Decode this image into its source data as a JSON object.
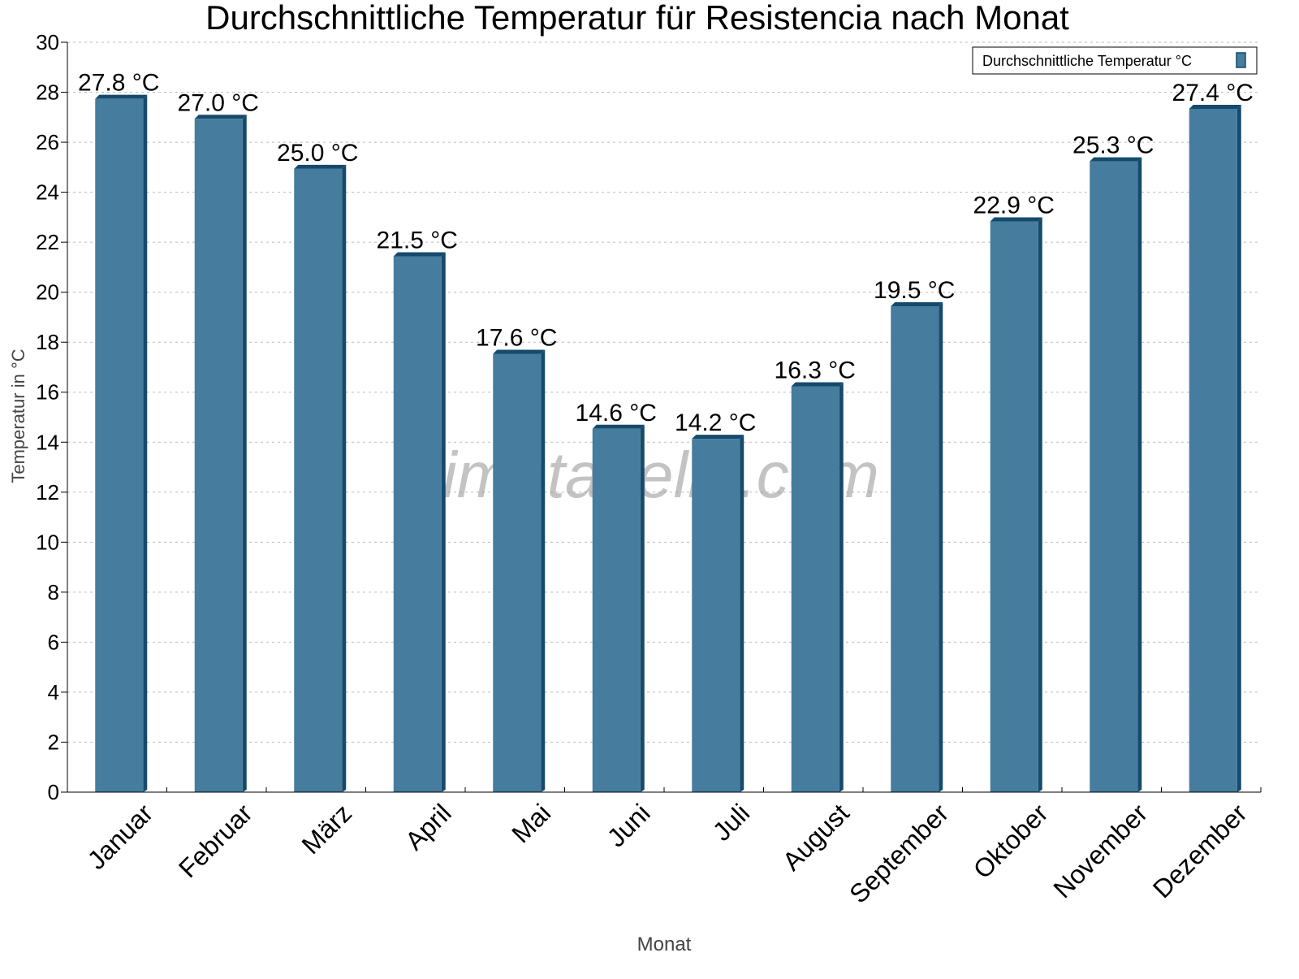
{
  "chart_data": {
    "type": "bar",
    "title": "Durchschnittliche Temperatur für Resistencia nach Monat",
    "xlabel": "Monat",
    "ylabel": "Temperatur in °C",
    "categories": [
      "Januar",
      "Februar",
      "März",
      "April",
      "Mai",
      "Juni",
      "Juli",
      "August",
      "September",
      "Oktober",
      "November",
      "Dezember"
    ],
    "series": [
      {
        "name": "Durchschnittliche Temperatur °C",
        "values": [
          27.8,
          27.0,
          25.0,
          21.5,
          17.6,
          14.6,
          14.2,
          16.3,
          19.5,
          22.9,
          25.3,
          27.4
        ]
      }
    ],
    "data_labels": [
      "27.8 °C",
      "27.0 °C",
      "25.0 °C",
      "21.5 °C",
      "17.6 °C",
      "14.6 °C",
      "14.2 °C",
      "16.3 °C",
      "19.5 °C",
      "22.9 °C",
      "25.3 °C",
      "27.4 °C"
    ],
    "ylim": [
      0,
      30
    ],
    "yticks": [
      0,
      2,
      4,
      6,
      8,
      10,
      12,
      14,
      16,
      18,
      20,
      22,
      24,
      26,
      28,
      30
    ],
    "grid": true,
    "legend_position": "top-right",
    "colors": {
      "bar": "#467c9e",
      "bar_dark": "#164a6c"
    },
    "watermark": "klimatabelle.com"
  }
}
